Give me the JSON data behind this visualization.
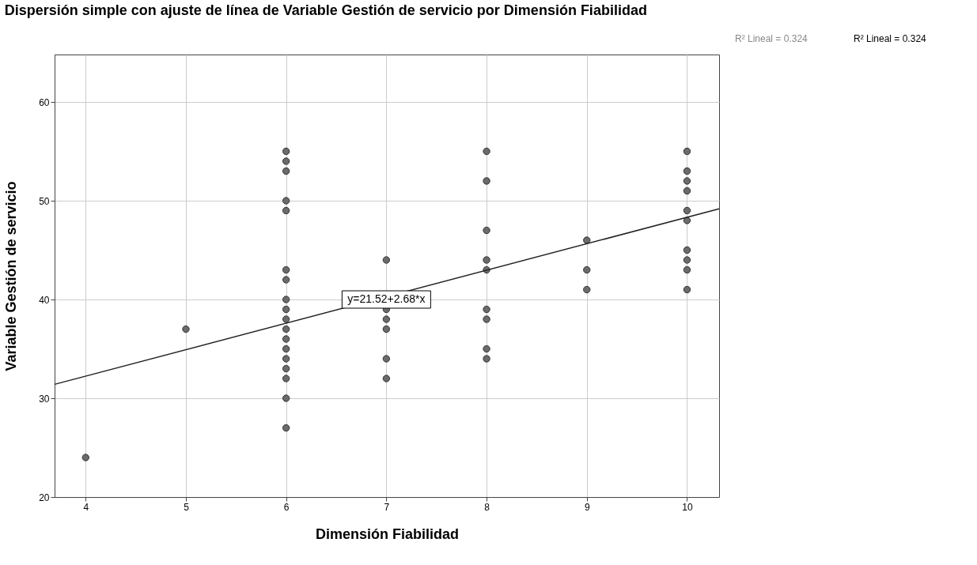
{
  "chart_data": {
    "type": "scatter",
    "title": "Dispersión simple con ajuste de línea de Variable Gestión de servicio por Dimensión Fiabilidad",
    "xlabel": "Dimensión Fiabilidad",
    "ylabel": "Variable Gestión de servicio",
    "series": [
      {
        "type": "scatter",
        "color": "#6b6b6b",
        "marker": "circle",
        "x": [
          4,
          5,
          6,
          6,
          6,
          6,
          6,
          6,
          6,
          6,
          6,
          6,
          6,
          6,
          6,
          6,
          6,
          6,
          6,
          6,
          7,
          7,
          7,
          7,
          7,
          7,
          8,
          8,
          8,
          8,
          8,
          8,
          8,
          8,
          8,
          9,
          9,
          9,
          10,
          10,
          10,
          10,
          10,
          10,
          10,
          10,
          10,
          10
        ],
        "values": [
          24,
          37,
          55,
          54,
          53,
          50,
          49,
          43,
          42,
          40,
          39,
          38,
          37,
          36,
          35,
          34,
          33,
          32,
          30,
          27,
          44,
          39,
          38,
          37,
          34,
          32,
          55,
          52,
          47,
          44,
          43,
          39,
          38,
          35,
          34,
          46,
          43,
          41,
          55,
          53,
          52,
          51,
          49,
          48,
          45,
          44,
          43,
          41
        ]
      },
      {
        "type": "line",
        "color": "#222222",
        "marker": "none",
        "line_style": "solid",
        "x": [
          3.69,
          10.32
        ],
        "values": [
          31.41,
          49.18
        ]
      }
    ],
    "xlim": [
      3.69,
      10.32
    ],
    "xticks": [
      4,
      5,
      6,
      7,
      8,
      9,
      10
    ],
    "ylim": [
      20,
      64.8
    ],
    "yticks": [
      20,
      30,
      40,
      50,
      60
    ],
    "grid": true,
    "annotations": [
      {
        "text": "y=21.52+2.68*x",
        "x": 7,
        "y": 40
      },
      "R² Lineal = 0.324",
      "R² Lineal = 0.324"
    ]
  }
}
